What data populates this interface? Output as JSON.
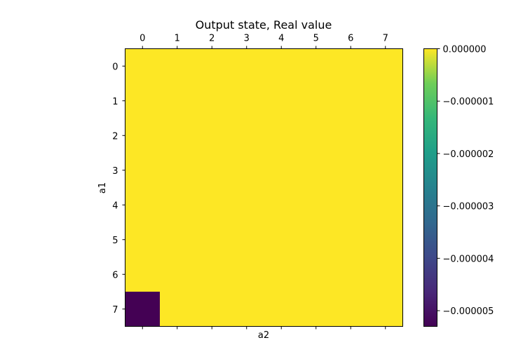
{
  "chart_data": {
    "type": "heatmap",
    "title": "Output state, Real value",
    "xlabel": "a2",
    "ylabel": "a1",
    "x_ticks": [
      "0",
      "1",
      "2",
      "3",
      "4",
      "5",
      "6",
      "7"
    ],
    "y_ticks": [
      "0",
      "1",
      "2",
      "3",
      "4",
      "5",
      "6",
      "7"
    ],
    "values": [
      [
        0,
        0,
        0,
        0,
        0,
        0,
        0,
        0
      ],
      [
        0,
        0,
        0,
        0,
        0,
        0,
        0,
        0
      ],
      [
        0,
        0,
        0,
        0,
        0,
        0,
        0,
        0
      ],
      [
        0,
        0,
        0,
        0,
        0,
        0,
        0,
        0
      ],
      [
        0,
        0,
        0,
        0,
        0,
        0,
        0,
        0
      ],
      [
        0,
        0,
        0,
        0,
        0,
        0,
        0,
        0
      ],
      [
        0,
        0,
        0,
        0,
        0,
        0,
        0,
        0
      ],
      [
        -5.3e-06,
        0,
        0,
        0,
        0,
        0,
        0,
        0
      ]
    ],
    "colormap": "viridis",
    "colorbar": {
      "range": [
        -5.3e-06,
        0
      ],
      "tick_values": [
        0,
        -1e-06,
        -2e-06,
        -3e-06,
        -4e-06,
        -5e-06
      ],
      "tick_labels": [
        "0.000000",
        "−0.000001",
        "−0.000002",
        "−0.000003",
        "−0.000004",
        "−0.000005"
      ]
    },
    "grid": false,
    "x_axis_position": "top"
  }
}
